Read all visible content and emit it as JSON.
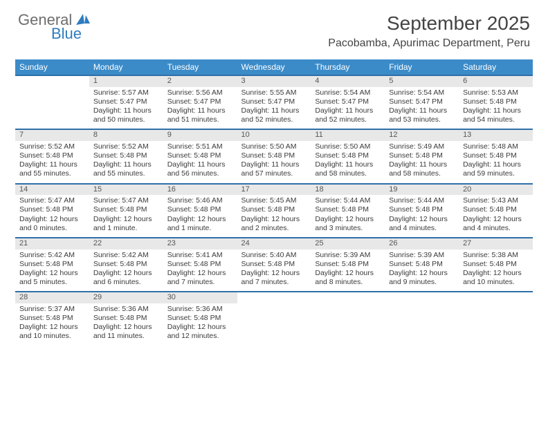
{
  "brand": {
    "logo_general": "General",
    "logo_blue": "Blue",
    "logo_icon_color": "#2e7cc0"
  },
  "header": {
    "month_title": "September 2025",
    "location": "Pacobamba, Apurimac Department, Peru"
  },
  "theme": {
    "header_bg": "#3b8bc9",
    "daynum_bg": "#e8e8e8",
    "row_border": "#2e6fa8",
    "text_color": "#3a3a3a"
  },
  "day_headers": [
    "Sunday",
    "Monday",
    "Tuesday",
    "Wednesday",
    "Thursday",
    "Friday",
    "Saturday"
  ],
  "weeks": [
    {
      "nums": [
        "",
        "1",
        "2",
        "3",
        "4",
        "5",
        "6"
      ],
      "cells": [
        {
          "blank": true
        },
        {
          "sunrise": "Sunrise: 5:57 AM",
          "sunset": "Sunset: 5:47 PM",
          "day1": "Daylight: 11 hours",
          "day2": "and 50 minutes."
        },
        {
          "sunrise": "Sunrise: 5:56 AM",
          "sunset": "Sunset: 5:47 PM",
          "day1": "Daylight: 11 hours",
          "day2": "and 51 minutes."
        },
        {
          "sunrise": "Sunrise: 5:55 AM",
          "sunset": "Sunset: 5:47 PM",
          "day1": "Daylight: 11 hours",
          "day2": "and 52 minutes."
        },
        {
          "sunrise": "Sunrise: 5:54 AM",
          "sunset": "Sunset: 5:47 PM",
          "day1": "Daylight: 11 hours",
          "day2": "and 52 minutes."
        },
        {
          "sunrise": "Sunrise: 5:54 AM",
          "sunset": "Sunset: 5:47 PM",
          "day1": "Daylight: 11 hours",
          "day2": "and 53 minutes."
        },
        {
          "sunrise": "Sunrise: 5:53 AM",
          "sunset": "Sunset: 5:48 PM",
          "day1": "Daylight: 11 hours",
          "day2": "and 54 minutes."
        }
      ]
    },
    {
      "nums": [
        "7",
        "8",
        "9",
        "10",
        "11",
        "12",
        "13"
      ],
      "cells": [
        {
          "sunrise": "Sunrise: 5:52 AM",
          "sunset": "Sunset: 5:48 PM",
          "day1": "Daylight: 11 hours",
          "day2": "and 55 minutes."
        },
        {
          "sunrise": "Sunrise: 5:52 AM",
          "sunset": "Sunset: 5:48 PM",
          "day1": "Daylight: 11 hours",
          "day2": "and 55 minutes."
        },
        {
          "sunrise": "Sunrise: 5:51 AM",
          "sunset": "Sunset: 5:48 PM",
          "day1": "Daylight: 11 hours",
          "day2": "and 56 minutes."
        },
        {
          "sunrise": "Sunrise: 5:50 AM",
          "sunset": "Sunset: 5:48 PM",
          "day1": "Daylight: 11 hours",
          "day2": "and 57 minutes."
        },
        {
          "sunrise": "Sunrise: 5:50 AM",
          "sunset": "Sunset: 5:48 PM",
          "day1": "Daylight: 11 hours",
          "day2": "and 58 minutes."
        },
        {
          "sunrise": "Sunrise: 5:49 AM",
          "sunset": "Sunset: 5:48 PM",
          "day1": "Daylight: 11 hours",
          "day2": "and 58 minutes."
        },
        {
          "sunrise": "Sunrise: 5:48 AM",
          "sunset": "Sunset: 5:48 PM",
          "day1": "Daylight: 11 hours",
          "day2": "and 59 minutes."
        }
      ]
    },
    {
      "nums": [
        "14",
        "15",
        "16",
        "17",
        "18",
        "19",
        "20"
      ],
      "cells": [
        {
          "sunrise": "Sunrise: 5:47 AM",
          "sunset": "Sunset: 5:48 PM",
          "day1": "Daylight: 12 hours",
          "day2": "and 0 minutes."
        },
        {
          "sunrise": "Sunrise: 5:47 AM",
          "sunset": "Sunset: 5:48 PM",
          "day1": "Daylight: 12 hours",
          "day2": "and 1 minute."
        },
        {
          "sunrise": "Sunrise: 5:46 AM",
          "sunset": "Sunset: 5:48 PM",
          "day1": "Daylight: 12 hours",
          "day2": "and 1 minute."
        },
        {
          "sunrise": "Sunrise: 5:45 AM",
          "sunset": "Sunset: 5:48 PM",
          "day1": "Daylight: 12 hours",
          "day2": "and 2 minutes."
        },
        {
          "sunrise": "Sunrise: 5:44 AM",
          "sunset": "Sunset: 5:48 PM",
          "day1": "Daylight: 12 hours",
          "day2": "and 3 minutes."
        },
        {
          "sunrise": "Sunrise: 5:44 AM",
          "sunset": "Sunset: 5:48 PM",
          "day1": "Daylight: 12 hours",
          "day2": "and 4 minutes."
        },
        {
          "sunrise": "Sunrise: 5:43 AM",
          "sunset": "Sunset: 5:48 PM",
          "day1": "Daylight: 12 hours",
          "day2": "and 4 minutes."
        }
      ]
    },
    {
      "nums": [
        "21",
        "22",
        "23",
        "24",
        "25",
        "26",
        "27"
      ],
      "cells": [
        {
          "sunrise": "Sunrise: 5:42 AM",
          "sunset": "Sunset: 5:48 PM",
          "day1": "Daylight: 12 hours",
          "day2": "and 5 minutes."
        },
        {
          "sunrise": "Sunrise: 5:42 AM",
          "sunset": "Sunset: 5:48 PM",
          "day1": "Daylight: 12 hours",
          "day2": "and 6 minutes."
        },
        {
          "sunrise": "Sunrise: 5:41 AM",
          "sunset": "Sunset: 5:48 PM",
          "day1": "Daylight: 12 hours",
          "day2": "and 7 minutes."
        },
        {
          "sunrise": "Sunrise: 5:40 AM",
          "sunset": "Sunset: 5:48 PM",
          "day1": "Daylight: 12 hours",
          "day2": "and 7 minutes."
        },
        {
          "sunrise": "Sunrise: 5:39 AM",
          "sunset": "Sunset: 5:48 PM",
          "day1": "Daylight: 12 hours",
          "day2": "and 8 minutes."
        },
        {
          "sunrise": "Sunrise: 5:39 AM",
          "sunset": "Sunset: 5:48 PM",
          "day1": "Daylight: 12 hours",
          "day2": "and 9 minutes."
        },
        {
          "sunrise": "Sunrise: 5:38 AM",
          "sunset": "Sunset: 5:48 PM",
          "day1": "Daylight: 12 hours",
          "day2": "and 10 minutes."
        }
      ]
    },
    {
      "nums": [
        "28",
        "29",
        "30",
        "",
        "",
        "",
        ""
      ],
      "cells": [
        {
          "sunrise": "Sunrise: 5:37 AM",
          "sunset": "Sunset: 5:48 PM",
          "day1": "Daylight: 12 hours",
          "day2": "and 10 minutes."
        },
        {
          "sunrise": "Sunrise: 5:36 AM",
          "sunset": "Sunset: 5:48 PM",
          "day1": "Daylight: 12 hours",
          "day2": "and 11 minutes."
        },
        {
          "sunrise": "Sunrise: 5:36 AM",
          "sunset": "Sunset: 5:48 PM",
          "day1": "Daylight: 12 hours",
          "day2": "and 12 minutes."
        },
        {
          "blank": true
        },
        {
          "blank": true
        },
        {
          "blank": true
        },
        {
          "blank": true
        }
      ]
    }
  ]
}
